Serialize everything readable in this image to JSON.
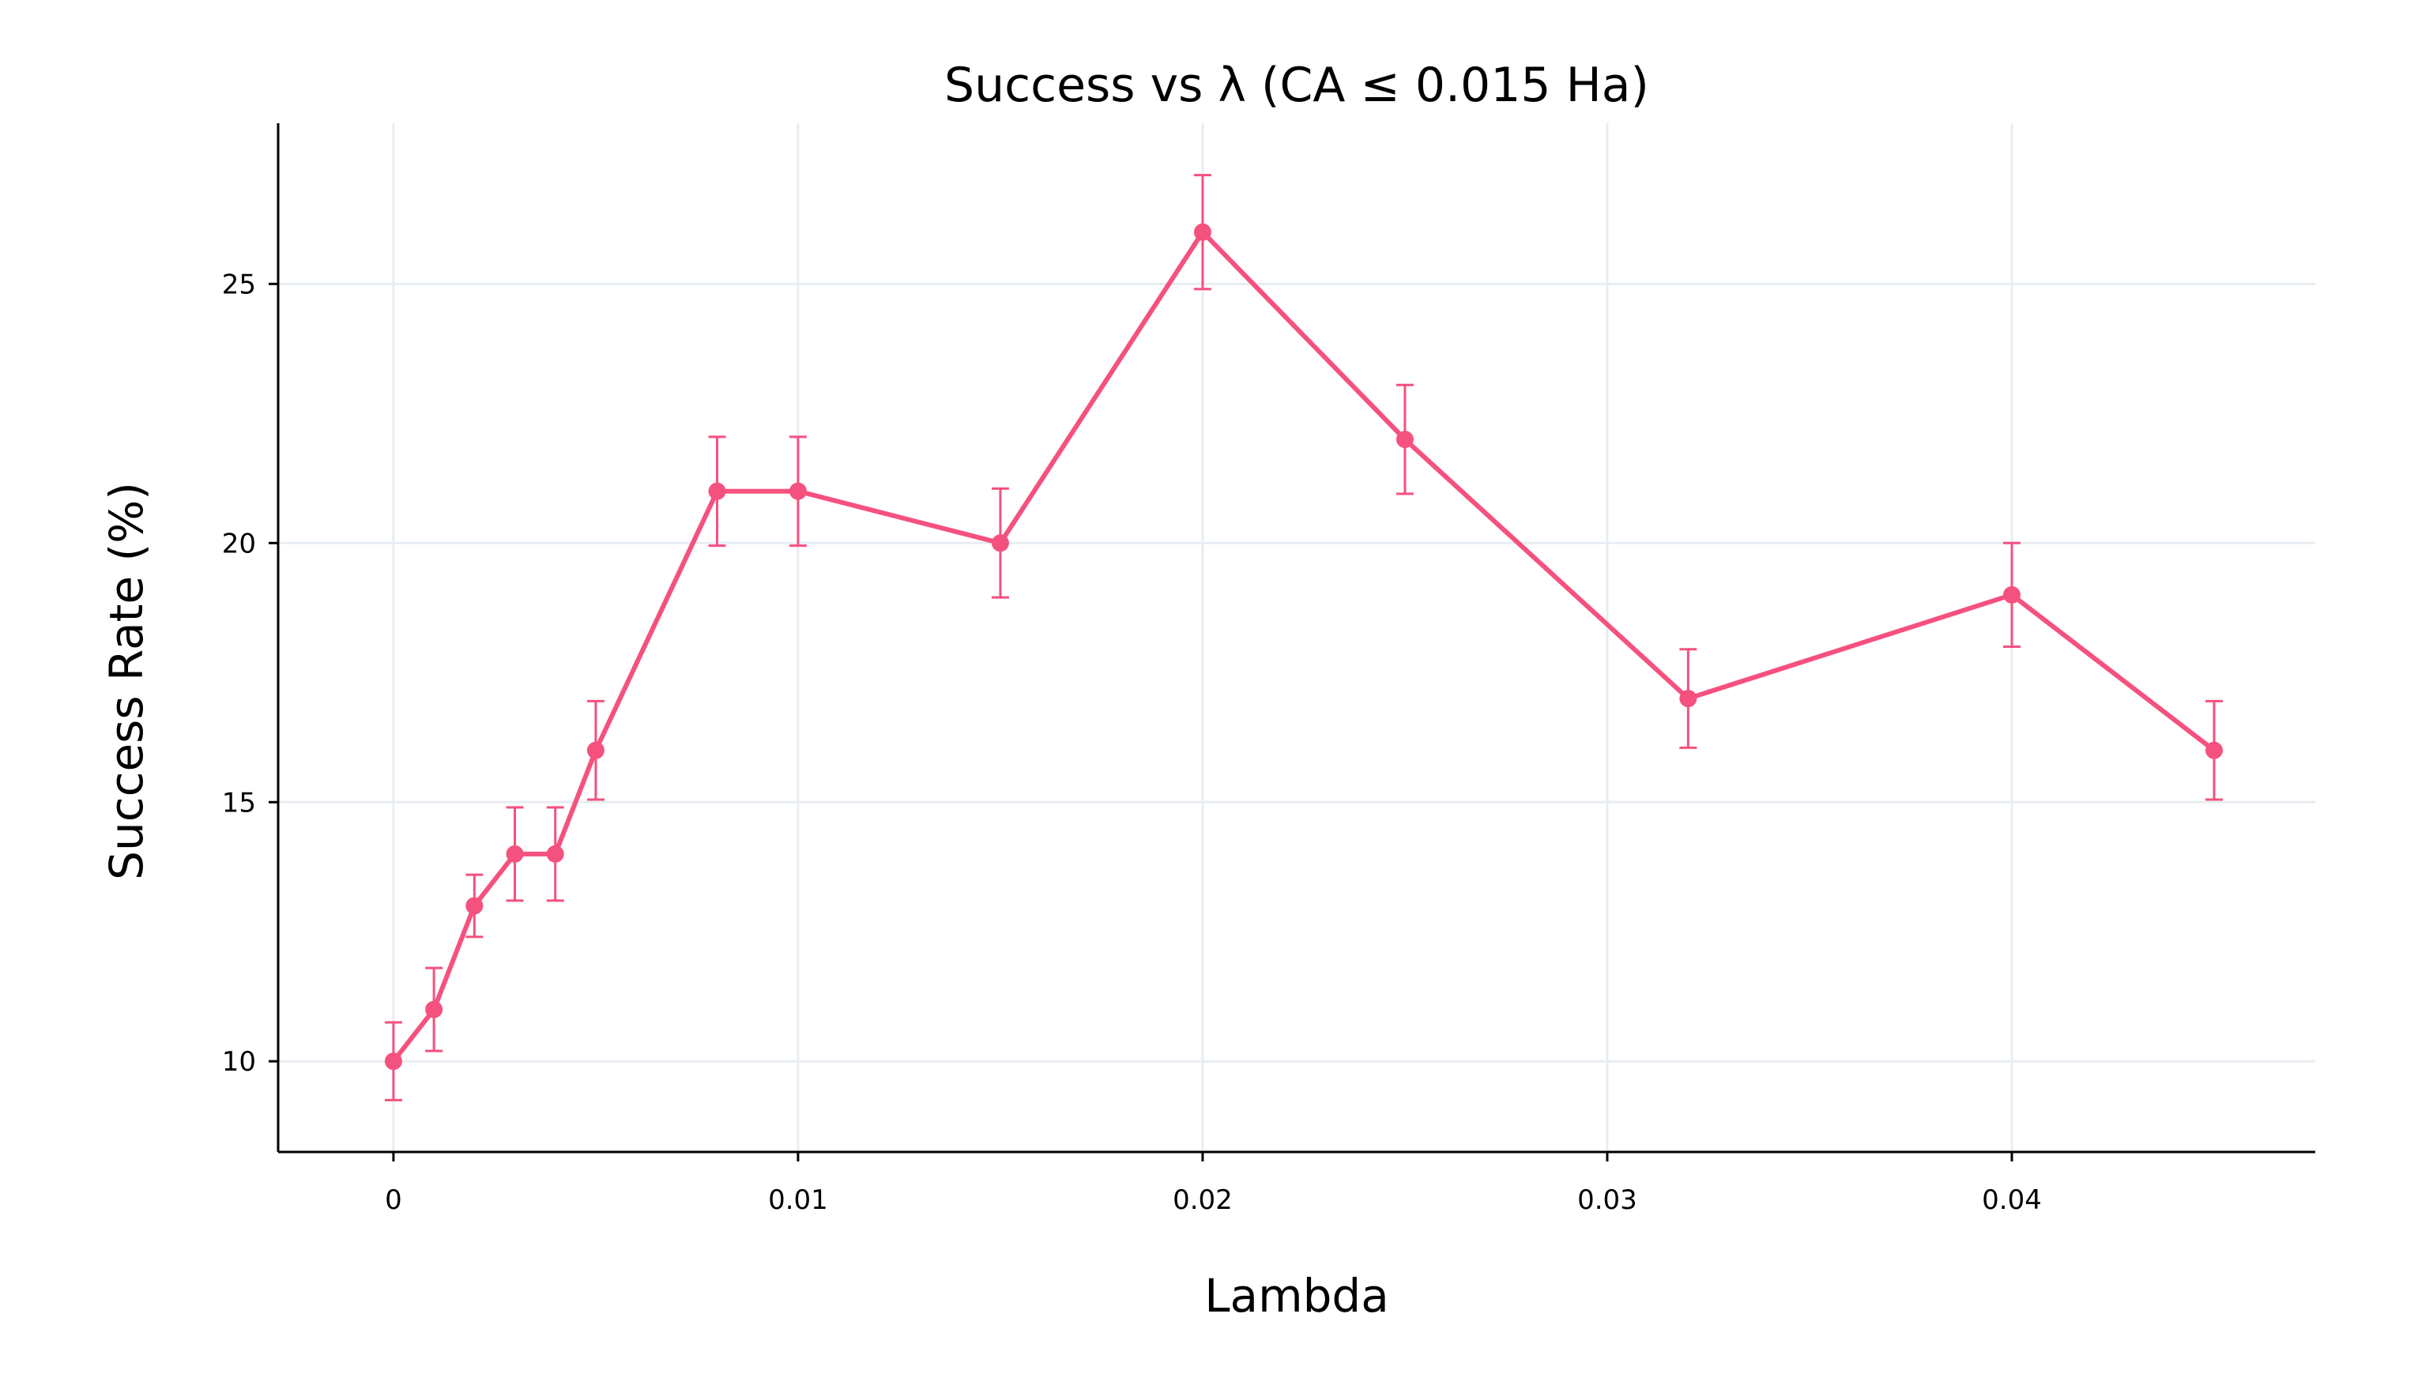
{
  "chart_data": {
    "type": "line",
    "title": "Success vs λ (CA ≤ 0.015 Ha)",
    "xlabel": "Lambda",
    "ylabel": "Success Rate (%)",
    "xlim": [
      -0.00285,
      0.0475
    ],
    "ylim": [
      8.25,
      28.1
    ],
    "x_ticks": [
      0,
      0.01,
      0.02,
      0.03,
      0.04
    ],
    "x_tick_labels": [
      "0",
      "0.01",
      "0.02",
      "0.03",
      "0.04"
    ],
    "y_ticks": [
      10,
      15,
      20,
      25
    ],
    "y_tick_labels": [
      "10",
      "15",
      "20",
      "25"
    ],
    "grid": true,
    "legend": "none",
    "series": [
      {
        "color": "#f5517f",
        "x": [
          0,
          0.001,
          0.002,
          0.003,
          0.004,
          0.005,
          0.008,
          0.01,
          0.015,
          0.02,
          0.025,
          0.032,
          0.04,
          0.045
        ],
        "y": [
          10,
          11,
          13,
          14,
          14,
          16,
          21,
          21,
          20,
          26,
          22,
          17,
          19,
          16
        ],
        "error": [
          0.75,
          0.8,
          0.6,
          0.9,
          0.9,
          0.95,
          1.05,
          1.05,
          1.05,
          1.1,
          1.05,
          0.95,
          1.0,
          0.95
        ]
      }
    ]
  }
}
